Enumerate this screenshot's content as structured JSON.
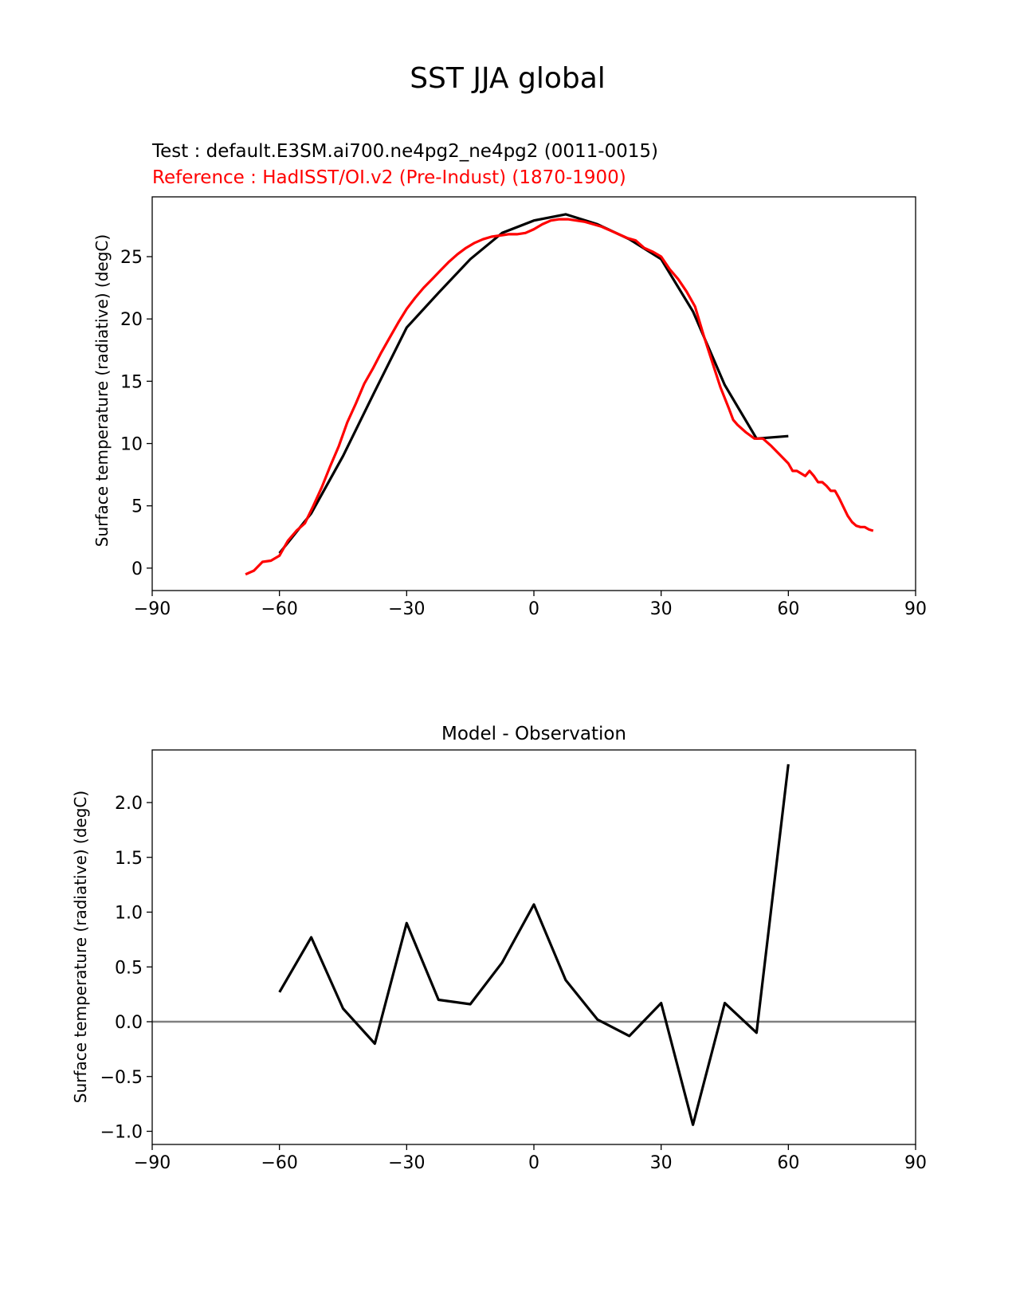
{
  "figure": {
    "title": "SST JJA global"
  },
  "chart_data": [
    {
      "type": "line",
      "test_label": "Test : default.E3SM.ai700.ne4pg2_ne4pg2 (0011-0015)",
      "reference_label": "Reference : HadISST/OI.v2 (Pre-Indust) (1870-1900)",
      "ylabel": "Surface temperature (radiative) (degC)",
      "xlim": [
        -90,
        90
      ],
      "ylim": [
        -1.8,
        29.8
      ],
      "xticks": [
        -90,
        -60,
        -30,
        0,
        30,
        60,
        90
      ],
      "xtick_labels": [
        "−90",
        "−60",
        "−30",
        "0",
        "30",
        "60",
        "90"
      ],
      "yticks": [
        0,
        5,
        10,
        15,
        20,
        25
      ],
      "ytick_labels": [
        "0",
        "5",
        "10",
        "15",
        "20",
        "25"
      ],
      "colors": {
        "test": "#000000",
        "reference": "#ff0000"
      },
      "series": [
        {
          "key": "test",
          "x": [
            -60,
            -52.5,
            -45,
            -37.5,
            -30,
            -22.5,
            -15,
            -7.5,
            0,
            7.5,
            15,
            22.5,
            30,
            37.5,
            45,
            52.5,
            60
          ],
          "y": [
            1.2,
            4.4,
            9.0,
            14.2,
            19.3,
            22.1,
            24.8,
            26.9,
            27.9,
            28.4,
            27.6,
            26.4,
            24.8,
            20.6,
            14.7,
            10.4,
            10.6
          ]
        },
        {
          "key": "reference",
          "x": [
            -68,
            -66,
            -64,
            -62,
            -60,
            -58,
            -56,
            -54,
            -52,
            -50,
            -48,
            -46,
            -44,
            -42,
            -40,
            -38,
            -36,
            -34,
            -32,
            -30,
            -28,
            -26,
            -24,
            -22,
            -20,
            -18,
            -16,
            -14,
            -12,
            -10,
            -8,
            -6,
            -4,
            -2,
            0,
            2,
            4,
            6,
            8,
            10,
            12,
            14,
            16,
            18,
            20,
            22,
            24,
            26,
            28,
            30,
            32,
            34,
            36,
            38,
            40,
            42,
            44,
            46,
            47,
            48,
            50,
            52,
            54,
            56,
            58,
            60,
            61,
            62,
            64,
            65,
            66,
            67,
            68,
            69,
            70,
            71,
            72,
            73,
            74,
            75,
            76,
            77,
            78,
            79,
            80
          ],
          "y": [
            -0.5,
            -0.2,
            0.5,
            0.6,
            1.0,
            2.2,
            3.0,
            3.6,
            5.0,
            6.5,
            8.2,
            9.8,
            11.7,
            13.2,
            14.8,
            16.0,
            17.3,
            18.5,
            19.7,
            20.8,
            21.7,
            22.5,
            23.2,
            23.9,
            24.6,
            25.2,
            25.7,
            26.1,
            26.4,
            26.6,
            26.7,
            26.8,
            26.8,
            26.9,
            27.2,
            27.6,
            27.9,
            28.0,
            28.0,
            27.9,
            27.8,
            27.6,
            27.4,
            27.1,
            26.8,
            26.5,
            26.3,
            25.7,
            25.4,
            25.0,
            24.0,
            23.2,
            22.2,
            21.0,
            18.7,
            16.6,
            14.5,
            12.8,
            11.9,
            11.5,
            10.9,
            10.4,
            10.4,
            9.8,
            9.1,
            8.4,
            7.8,
            7.8,
            7.4,
            7.8,
            7.4,
            6.9,
            6.9,
            6.6,
            6.2,
            6.2,
            5.6,
            4.9,
            4.2,
            3.7,
            3.4,
            3.3,
            3.3,
            3.1,
            3.0
          ]
        }
      ]
    },
    {
      "type": "line",
      "title": "Model - Observation",
      "ylabel": "Surface temperature (radiative) (degC)",
      "xlim": [
        -90,
        90
      ],
      "ylim": [
        -1.12,
        2.48
      ],
      "xticks": [
        -90,
        -60,
        -30,
        0,
        30,
        60,
        90
      ],
      "xtick_labels": [
        "−90",
        "−60",
        "−30",
        "0",
        "30",
        "60",
        "90"
      ],
      "yticks": [
        -1.0,
        -0.5,
        0.0,
        0.5,
        1.0,
        1.5,
        2.0
      ],
      "ytick_labels": [
        "−1.0",
        "−0.5",
        "0.0",
        "0.5",
        "1.0",
        "1.5",
        "2.0"
      ],
      "colors": {
        "diff": "#000000",
        "zero_line": "#808080"
      },
      "series": [
        {
          "key": "diff",
          "x": [
            -60,
            -52.5,
            -45,
            -37.5,
            -30,
            -22.5,
            -15,
            -7.5,
            0,
            7.5,
            15,
            22.5,
            30,
            37.5,
            45,
            52.5,
            60
          ],
          "y": [
            0.27,
            0.77,
            0.12,
            -0.2,
            0.9,
            0.2,
            0.16,
            0.54,
            1.07,
            0.38,
            0.02,
            -0.13,
            0.17,
            -0.94,
            0.17,
            -0.1,
            2.35
          ]
        }
      ],
      "reference_line_y": 0.0
    }
  ]
}
